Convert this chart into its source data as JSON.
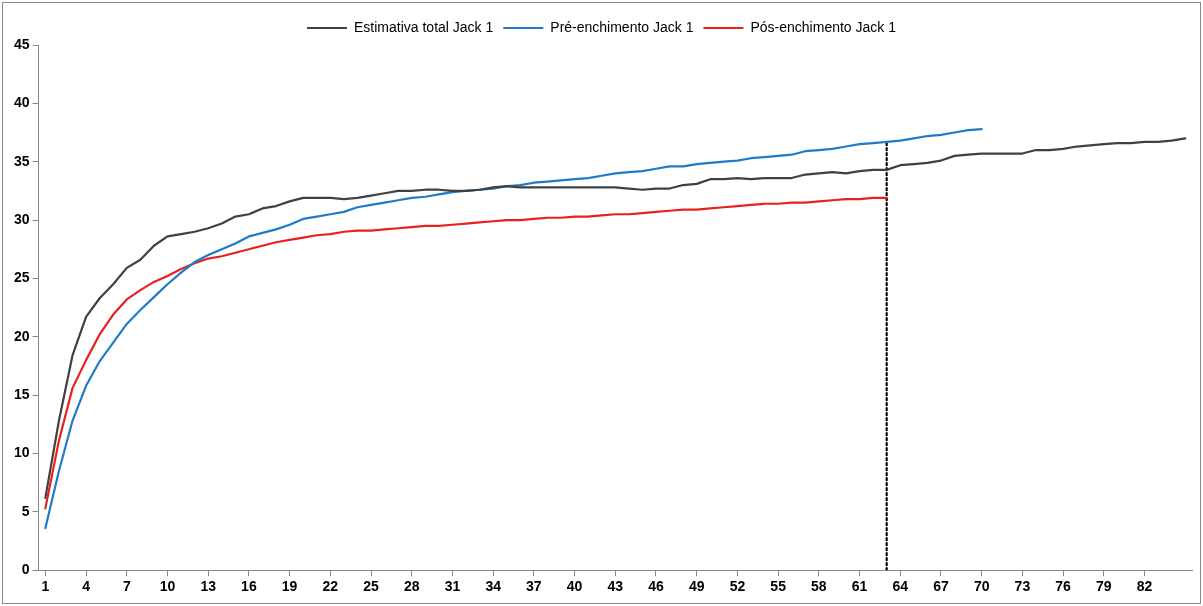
{
  "chart_data": {
    "type": "line",
    "x": [
      1,
      2,
      3,
      4,
      5,
      6,
      7,
      8,
      9,
      10,
      11,
      12,
      13,
      14,
      15,
      16,
      17,
      18,
      19,
      20,
      21,
      22,
      23,
      24,
      25,
      26,
      27,
      28,
      29,
      30,
      31,
      32,
      33,
      34,
      35,
      36,
      37,
      38,
      39,
      40,
      41,
      42,
      43,
      44,
      45,
      46,
      47,
      48,
      49,
      50,
      51,
      52,
      53,
      54,
      55,
      56,
      57,
      58,
      59,
      60,
      61,
      62,
      63,
      64,
      65,
      66,
      67,
      68,
      69,
      70,
      71,
      72,
      73,
      74,
      75,
      76,
      77,
      78,
      79,
      80,
      81,
      82,
      83,
      84,
      85
    ],
    "xlim": [
      0.5,
      85.5
    ],
    "xticks": [
      1,
      4,
      7,
      10,
      13,
      16,
      19,
      22,
      25,
      28,
      31,
      34,
      37,
      40,
      43,
      46,
      49,
      52,
      55,
      58,
      61,
      64,
      67,
      70,
      73,
      76,
      79,
      82
    ],
    "ylim": [
      0,
      45
    ],
    "yticks": [
      0,
      5,
      10,
      15,
      20,
      25,
      30,
      35,
      40,
      45
    ],
    "grid": false,
    "legend": "top",
    "marker": "none",
    "series": [
      {
        "name": "Estimativa total Jack 1",
        "color": "#404040",
        "values": [
          6.2,
          12.8,
          18.4,
          21.7,
          23.3,
          24.5,
          25.9,
          26.6,
          27.8,
          28.6,
          28.8,
          29.0,
          29.3,
          29.7,
          30.3,
          30.5,
          31.0,
          31.2,
          31.6,
          31.9,
          31.9,
          31.9,
          31.8,
          31.9,
          32.1,
          32.3,
          32.5,
          32.5,
          32.6,
          32.6,
          32.5,
          32.5,
          32.6,
          32.8,
          32.9,
          32.8,
          32.8,
          32.8,
          32.8,
          32.8,
          32.8,
          32.8,
          32.8,
          32.7,
          32.6,
          32.7,
          32.7,
          33.0,
          33.1,
          33.5,
          33.5,
          33.6,
          33.5,
          33.6,
          33.6,
          33.6,
          33.9,
          34.0,
          34.1,
          34.0,
          34.2,
          34.3,
          34.3,
          34.7,
          34.8,
          34.9,
          35.1,
          35.5,
          35.6,
          35.7,
          35.7,
          35.7,
          35.7,
          36.0,
          36.0,
          36.1,
          36.3,
          36.4,
          36.5,
          36.6,
          36.6,
          36.7,
          36.7,
          36.8,
          37.0
        ]
      },
      {
        "name": "Pré-enchimento Jack 1",
        "color": "#1f7bc9",
        "x": [
          1,
          2,
          3,
          4,
          5,
          6,
          7,
          8,
          9,
          10,
          11,
          12,
          13,
          14,
          15,
          16,
          17,
          18,
          19,
          20,
          21,
          22,
          23,
          24,
          25,
          26,
          27,
          28,
          29,
          30,
          31,
          32,
          33,
          34,
          35,
          36,
          37,
          38,
          39,
          40,
          41,
          42,
          43,
          44,
          45,
          46,
          47,
          48,
          49,
          50,
          51,
          52,
          53,
          54,
          55,
          56,
          57,
          58,
          59,
          60,
          61,
          62,
          63,
          64,
          65,
          66,
          67,
          68,
          69,
          70
        ],
        "values": [
          3.6,
          8.5,
          12.8,
          15.8,
          17.9,
          19.5,
          21.1,
          22.3,
          23.4,
          24.5,
          25.5,
          26.4,
          27.0,
          27.5,
          28.0,
          28.6,
          28.9,
          29.2,
          29.6,
          30.1,
          30.3,
          30.5,
          30.7,
          31.1,
          31.3,
          31.5,
          31.7,
          31.9,
          32.0,
          32.2,
          32.4,
          32.5,
          32.6,
          32.7,
          32.9,
          33.0,
          33.2,
          33.3,
          33.4,
          33.5,
          33.6,
          33.8,
          34.0,
          34.1,
          34.2,
          34.4,
          34.6,
          34.6,
          34.8,
          34.9,
          35.0,
          35.1,
          35.3,
          35.4,
          35.5,
          35.6,
          35.9,
          36.0,
          36.1,
          36.3,
          36.5,
          36.6,
          36.7,
          36.8,
          37.0,
          37.2,
          37.3,
          37.5,
          37.7,
          37.8
        ]
      },
      {
        "name": "Pós-enchimento Jack 1",
        "color": "#e8201e",
        "x": [
          1,
          2,
          3,
          4,
          5,
          6,
          7,
          8,
          9,
          10,
          11,
          12,
          13,
          14,
          15,
          16,
          17,
          18,
          19,
          20,
          21,
          22,
          23,
          24,
          25,
          26,
          27,
          28,
          29,
          30,
          31,
          32,
          33,
          34,
          35,
          36,
          37,
          38,
          39,
          40,
          41,
          42,
          43,
          44,
          45,
          46,
          47,
          48,
          49,
          50,
          51,
          52,
          53,
          54,
          55,
          56,
          57,
          58,
          59,
          60,
          61,
          62,
          63
        ],
        "values": [
          5.3,
          11.1,
          15.6,
          18.0,
          20.2,
          21.9,
          23.2,
          24.0,
          24.7,
          25.2,
          25.8,
          26.3,
          26.7,
          26.9,
          27.2,
          27.5,
          27.8,
          28.1,
          28.3,
          28.5,
          28.7,
          28.8,
          29.0,
          29.1,
          29.1,
          29.2,
          29.3,
          29.4,
          29.5,
          29.5,
          29.6,
          29.7,
          29.8,
          29.9,
          30.0,
          30.0,
          30.1,
          30.2,
          30.2,
          30.3,
          30.3,
          30.4,
          30.5,
          30.5,
          30.6,
          30.7,
          30.8,
          30.9,
          30.9,
          31.0,
          31.1,
          31.2,
          31.3,
          31.4,
          31.4,
          31.5,
          31.5,
          31.6,
          31.7,
          31.8,
          31.8,
          31.9,
          31.9
        ]
      },
      {
        "color": "#000000",
        "x": [
          63,
          63
        ],
        "values": [
          0,
          36.7
        ],
        "line_style": "dotted"
      }
    ]
  }
}
